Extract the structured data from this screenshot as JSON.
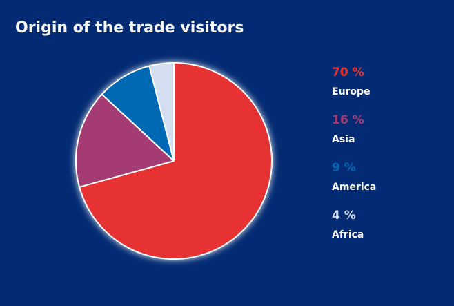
{
  "chart_data": {
    "type": "pie",
    "title": "Origin of the trade visitors",
    "categories": [
      "Europe",
      "Asia",
      "America",
      "Africa"
    ],
    "values": [
      70,
      16,
      9,
      4
    ],
    "value_labels": [
      "70 %",
      "16 %",
      "9 %",
      "4 %"
    ],
    "colors": [
      "#e63331",
      "#a43a73",
      "#0069b4",
      "#d3dff0"
    ]
  }
}
